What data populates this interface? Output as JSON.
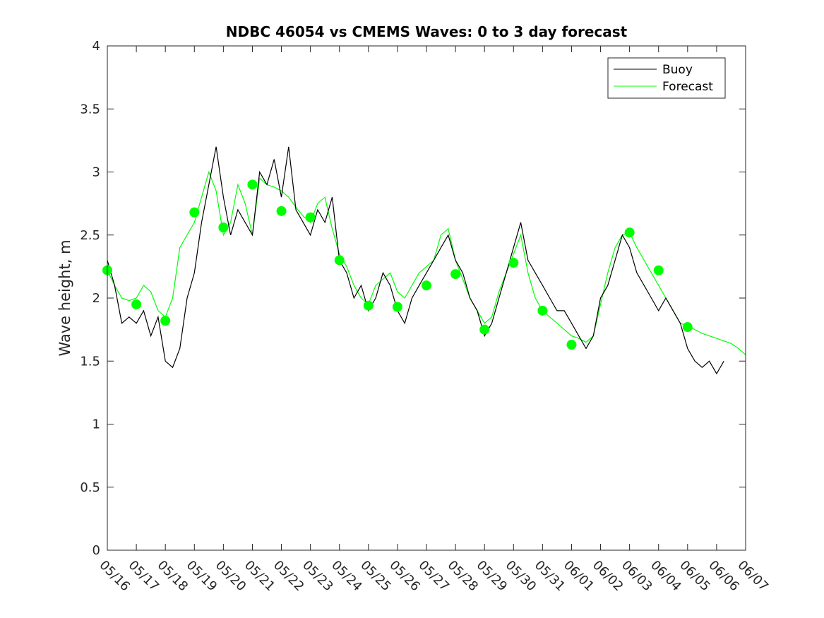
{
  "chart_data": {
    "type": "line",
    "title": "NDBC 46054 vs CMEMS Waves: 0 to 3 day forecast",
    "xlabel": "",
    "ylabel": "Wave height, m",
    "xlim": [
      "2020-05-16",
      "2020-06-07"
    ],
    "ylim": [
      0,
      4
    ],
    "x_tick_labels": [
      "05/16",
      "05/17",
      "05/18",
      "05/19",
      "05/20",
      "05/21",
      "05/22",
      "05/23",
      "05/24",
      "05/25",
      "05/26",
      "05/27",
      "05/28",
      "05/29",
      "05/30",
      "05/31",
      "06/01",
      "06/02",
      "06/03",
      "06/04",
      "06/05",
      "06/06",
      "06/07"
    ],
    "y_ticks": [
      0,
      0.5,
      1,
      1.5,
      2,
      2.5,
      3,
      3.5,
      4
    ],
    "y_tick_labels": [
      "0",
      "0.5",
      "1",
      "1.5",
      "2",
      "2.5",
      "3",
      "3.5",
      "4"
    ],
    "grid": false,
    "legend_position": "top-right",
    "colors": {
      "buoy": "#000000",
      "forecast": "#00ff00",
      "axes": "#262626"
    },
    "series": [
      {
        "name": "Buoy",
        "x": [
          "05-16 00:00",
          "05-16 06:00",
          "05-16 12:00",
          "05-16 18:00",
          "05-17 00:00",
          "05-17 06:00",
          "05-17 12:00",
          "05-17 18:00",
          "05-18 00:00",
          "05-18 06:00",
          "05-18 12:00",
          "05-18 18:00",
          "05-19 00:00",
          "05-19 06:00",
          "05-19 12:00",
          "05-19 18:00",
          "05-20 00:00",
          "05-20 06:00",
          "05-20 12:00",
          "05-20 18:00",
          "05-21 00:00",
          "05-21 06:00",
          "05-21 12:00",
          "05-21 18:00",
          "05-22 00:00",
          "05-22 06:00",
          "05-22 12:00",
          "05-22 18:00",
          "05-23 00:00",
          "05-23 06:00",
          "05-23 12:00",
          "05-23 18:00",
          "05-24 00:00",
          "05-24 06:00",
          "05-24 12:00",
          "05-24 18:00",
          "05-25 00:00",
          "05-25 06:00",
          "05-25 12:00",
          "05-25 18:00",
          "05-26 00:00",
          "05-26 06:00",
          "05-26 12:00",
          "05-26 18:00",
          "05-27 00:00",
          "05-27 06:00",
          "05-27 12:00",
          "05-27 18:00",
          "05-28 00:00",
          "05-28 06:00",
          "05-28 12:00",
          "05-28 18:00",
          "05-29 00:00",
          "05-29 06:00",
          "05-29 12:00",
          "05-29 18:00",
          "05-30 00:00",
          "05-30 06:00",
          "05-30 12:00",
          "05-30 18:00",
          "05-31 00:00",
          "05-31 06:00",
          "05-31 12:00",
          "05-31 18:00",
          "06-01 00:00",
          "06-01 06:00",
          "06-01 12:00",
          "06-01 18:00",
          "06-02 00:00",
          "06-02 06:00",
          "06-02 12:00",
          "06-02 18:00",
          "06-03 00:00",
          "06-03 06:00",
          "06-03 12:00",
          "06-03 18:00",
          "06-04 00:00",
          "06-04 06:00",
          "06-04 12:00",
          "06-04 18:00",
          "06-05 00:00",
          "06-05 06:00",
          "06-05 12:00",
          "06-05 18:00",
          "06-06 00:00",
          "06-06 06:00"
        ],
        "values": [
          2.3,
          2.1,
          1.8,
          1.85,
          1.8,
          1.9,
          1.7,
          1.85,
          1.5,
          1.45,
          1.6,
          2.0,
          2.2,
          2.6,
          2.9,
          3.2,
          2.8,
          2.5,
          2.7,
          2.6,
          2.5,
          3.0,
          2.9,
          3.1,
          2.8,
          3.2,
          2.7,
          2.6,
          2.5,
          2.7,
          2.6,
          2.8,
          2.3,
          2.2,
          2.0,
          2.1,
          1.9,
          2.0,
          2.2,
          2.1,
          1.9,
          1.8,
          2.0,
          2.1,
          2.2,
          2.3,
          2.4,
          2.5,
          2.3,
          2.2,
          2.0,
          1.9,
          1.7,
          1.8,
          2.0,
          2.2,
          2.4,
          2.6,
          2.3,
          2.2,
          2.1,
          2.0,
          1.9,
          1.9,
          1.8,
          1.7,
          1.6,
          1.7,
          2.0,
          2.1,
          2.3,
          2.5,
          2.4,
          2.2,
          2.1,
          2.0,
          1.9,
          2.0,
          1.9,
          1.8,
          1.6,
          1.5,
          1.45,
          1.5,
          1.4,
          1.5
        ]
      },
      {
        "name": "Forecast",
        "x": [
          "05-16 00:00",
          "05-16 06:00",
          "05-16 12:00",
          "05-16 18:00",
          "05-17 00:00",
          "05-17 06:00",
          "05-17 12:00",
          "05-17 18:00",
          "05-18 00:00",
          "05-18 06:00",
          "05-18 12:00",
          "05-18 18:00",
          "05-19 00:00",
          "05-19 06:00",
          "05-19 12:00",
          "05-19 18:00",
          "05-20 00:00",
          "05-20 06:00",
          "05-20 12:00",
          "05-20 18:00",
          "05-21 00:00",
          "05-21 06:00",
          "05-21 12:00",
          "05-21 18:00",
          "05-22 00:00",
          "05-22 06:00",
          "05-22 12:00",
          "05-22 18:00",
          "05-23 00:00",
          "05-23 06:00",
          "05-23 12:00",
          "05-23 18:00",
          "05-24 00:00",
          "05-24 06:00",
          "05-24 12:00",
          "05-24 18:00",
          "05-25 00:00",
          "05-25 06:00",
          "05-25 12:00",
          "05-25 18:00",
          "05-26 00:00",
          "05-26 06:00",
          "05-26 12:00",
          "05-26 18:00",
          "05-27 00:00",
          "05-27 06:00",
          "05-27 12:00",
          "05-27 18:00",
          "05-28 00:00",
          "05-28 06:00",
          "05-28 12:00",
          "05-28 18:00",
          "05-29 00:00",
          "05-29 06:00",
          "05-29 12:00",
          "05-29 18:00",
          "05-30 00:00",
          "05-30 06:00",
          "05-30 12:00",
          "05-30 18:00",
          "05-31 00:00",
          "05-31 06:00",
          "05-31 12:00",
          "05-31 18:00",
          "06-01 00:00",
          "06-01 06:00",
          "06-01 12:00",
          "06-01 18:00",
          "06-02 00:00",
          "06-02 06:00",
          "06-02 12:00",
          "06-02 18:00",
          "06-03 00:00",
          "06-03 06:00",
          "06-03 12:00",
          "06-03 18:00",
          "06-04 00:00",
          "06-04 06:00",
          "06-04 12:00",
          "06-04 18:00",
          "06-05 00:00",
          "06-05 06:00",
          "06-05 12:00",
          "06-05 18:00",
          "06-06 00:00",
          "06-06 06:00",
          "06-06 12:00",
          "06-06 18:00",
          "06-07 00:00"
        ],
        "values": [
          2.22,
          2.1,
          2.0,
          1.98,
          2.0,
          2.1,
          2.05,
          1.9,
          1.85,
          2.0,
          2.4,
          2.5,
          2.6,
          2.8,
          3.0,
          2.85,
          2.5,
          2.6,
          2.9,
          2.75,
          2.5,
          2.95,
          2.9,
          2.88,
          2.85,
          2.8,
          2.72,
          2.65,
          2.6,
          2.75,
          2.8,
          2.55,
          2.35,
          2.25,
          2.1,
          2.0,
          1.95,
          2.1,
          2.15,
          2.2,
          2.05,
          2.0,
          2.1,
          2.2,
          2.25,
          2.3,
          2.5,
          2.55,
          2.3,
          2.15,
          2.0,
          1.9,
          1.8,
          1.85,
          2.05,
          2.2,
          2.35,
          2.5,
          2.2,
          2.0,
          1.9,
          1.85,
          1.8,
          1.75,
          1.7,
          1.68,
          1.65,
          1.7,
          1.95,
          2.2,
          2.4,
          2.5,
          2.52,
          2.4,
          2.3,
          2.2,
          2.1,
          2.0,
          1.9,
          1.8,
          1.78,
          1.75,
          1.72,
          1.7,
          1.68,
          1.66,
          1.64,
          1.6,
          1.55
        ]
      }
    ],
    "forecast_markers": {
      "x": [
        "05-16",
        "05-17",
        "05-18",
        "05-19",
        "05-20",
        "05-21",
        "05-22",
        "05-23",
        "05-24",
        "05-25",
        "05-26",
        "05-27",
        "05-28",
        "05-29",
        "05-30",
        "05-31",
        "06-01",
        "06-03",
        "06-04",
        "06-05"
      ],
      "values": [
        2.22,
        1.95,
        1.82,
        2.68,
        2.56,
        2.9,
        2.69,
        2.64,
        2.3,
        1.94,
        1.93,
        2.1,
        2.19,
        1.75,
        2.28,
        1.9,
        1.63,
        2.52,
        2.22,
        1.77
      ]
    }
  }
}
